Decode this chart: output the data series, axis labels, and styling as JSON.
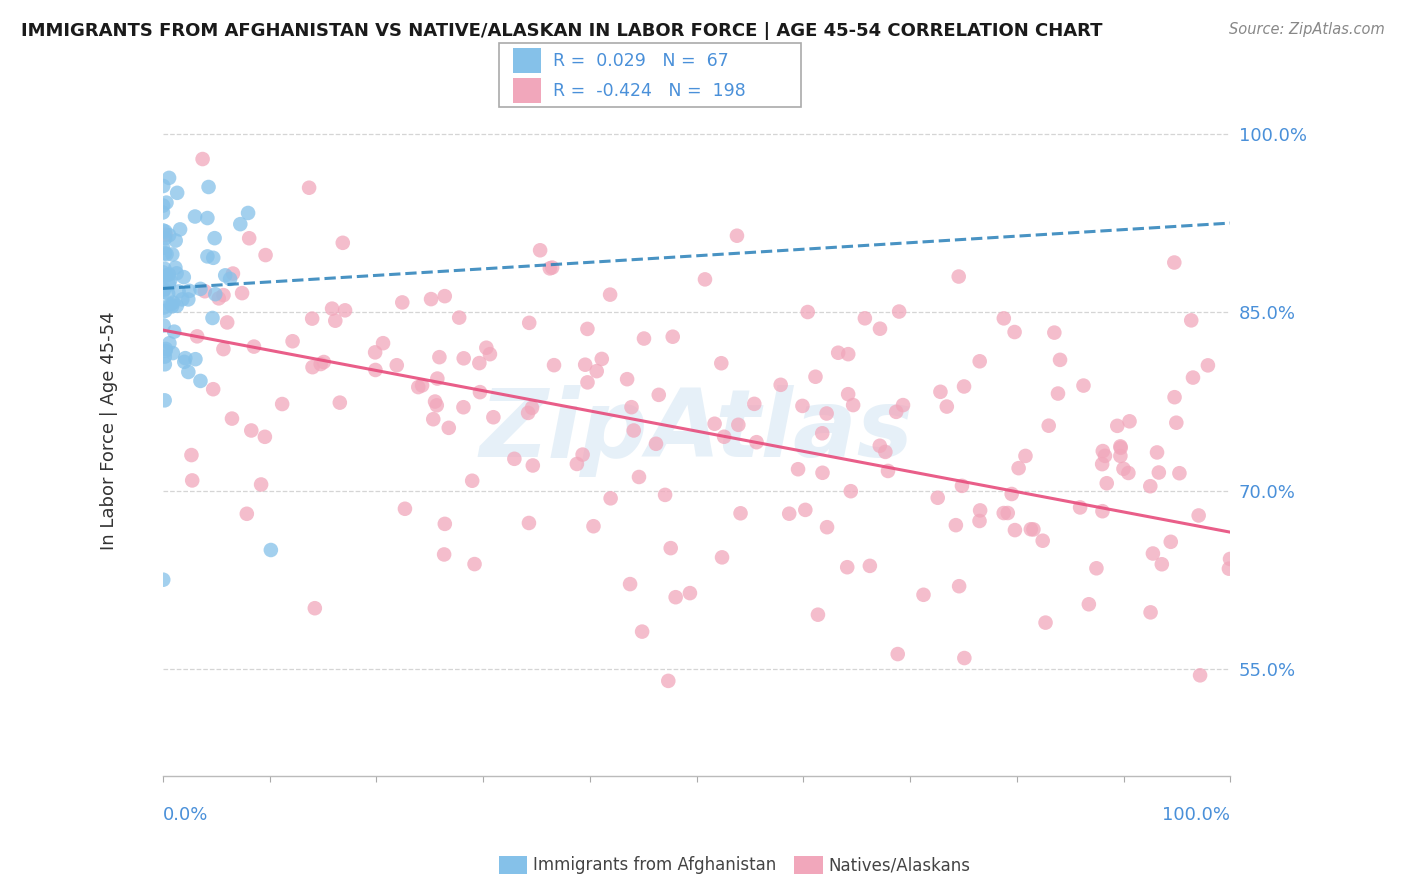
{
  "title": "IMMIGRANTS FROM AFGHANISTAN VS NATIVE/ALASKAN IN LABOR FORCE | AGE 45-54 CORRELATION CHART",
  "source": "Source: ZipAtlas.com",
  "ylabel": "In Labor Force | Age 45-54",
  "xlim": [
    0.0,
    1.0
  ],
  "ylim": [
    0.46,
    1.04
  ],
  "yticks": [
    0.55,
    0.7,
    0.85,
    1.0
  ],
  "ytick_labels": [
    "55.0%",
    "70.0%",
    "85.0%",
    "100.0%"
  ],
  "blue_color": "#85c1e9",
  "pink_color": "#f1a7bb",
  "blue_line_color": "#2980b9",
  "pink_line_color": "#e74c7c",
  "accent_color": "#4a90d9",
  "text_color": "#333333",
  "grid_color": "#d5d5d5",
  "watermark": "ZipAtlas",
  "watermark_color": "#c8dff0",
  "blue_R": 0.029,
  "blue_N": 67,
  "pink_R": -0.424,
  "pink_N": 198,
  "blue_intercept": 0.87,
  "blue_slope": 0.055,
  "pink_intercept": 0.835,
  "pink_slope": -0.17,
  "legend_r1_val": "0.029",
  "legend_n1_val": "67",
  "legend_r2_val": "-0.424",
  "legend_n2_val": "198",
  "random_seed": 12
}
